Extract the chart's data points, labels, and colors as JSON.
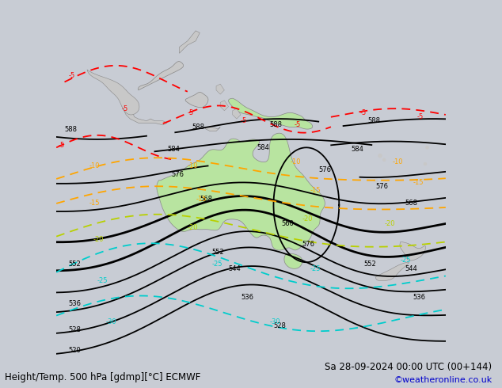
{
  "title_left": "Height/Temp. 500 hPa [gdmp][°C] ECMWF",
  "title_right": "Sa 28-09-2024 00:00 UTC (00+144)",
  "credit": "©weatheronline.co.uk",
  "bg_color": "#c8ccd4",
  "australia_fill": "#b8e4a0",
  "land_fill": "#c8c8c8",
  "sea_fill": "#d0d4dc",
  "text_color": "#000000",
  "credit_color": "#0000cc",
  "font_size_title": 8.5,
  "font_size_label": 6.5
}
